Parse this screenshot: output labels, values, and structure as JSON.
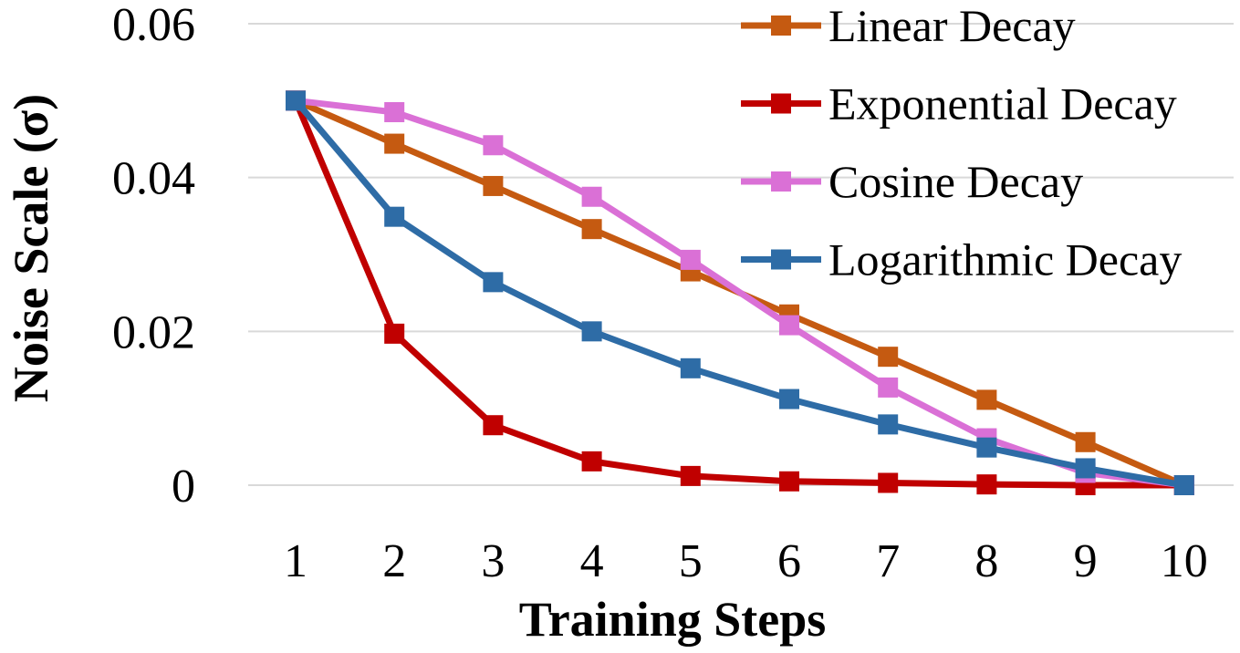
{
  "chart_data": {
    "type": "line",
    "xlabel": "Training Steps",
    "ylabel": "Noise Scale (σ)",
    "x": [
      1,
      2,
      3,
      4,
      5,
      6,
      7,
      8,
      9,
      10
    ],
    "ylim": [
      0,
      0.06
    ],
    "yticks": [
      "0",
      "0.02",
      "0.04",
      "0.06"
    ],
    "grid": true,
    "legend_position": "top-right",
    "series": [
      {
        "name": "Linear Decay",
        "color": "#c55a11",
        "marker": "square",
        "values": [
          0.05,
          0.0444,
          0.0389,
          0.0333,
          0.0278,
          0.0222,
          0.0167,
          0.0111,
          0.0056,
          0.0
        ]
      },
      {
        "name": "Exponential Decay",
        "color": "#c00000",
        "marker": "square",
        "values": [
          0.05,
          0.0197,
          0.0078,
          0.0031,
          0.0012,
          0.0005,
          0.0003,
          0.0001,
          0.0,
          0.0
        ]
      },
      {
        "name": "Cosine Decay",
        "color": "#da70d6",
        "marker": "square",
        "values": [
          0.05,
          0.0485,
          0.0442,
          0.0375,
          0.0293,
          0.0208,
          0.0127,
          0.0061,
          0.0016,
          0.0
        ]
      },
      {
        "name": "Logarithmic Decay",
        "color": "#2e6ca6",
        "marker": "square",
        "values": [
          0.05,
          0.0349,
          0.0264,
          0.02,
          0.0152,
          0.0112,
          0.0079,
          0.0049,
          0.0022,
          0.0
        ]
      }
    ]
  }
}
